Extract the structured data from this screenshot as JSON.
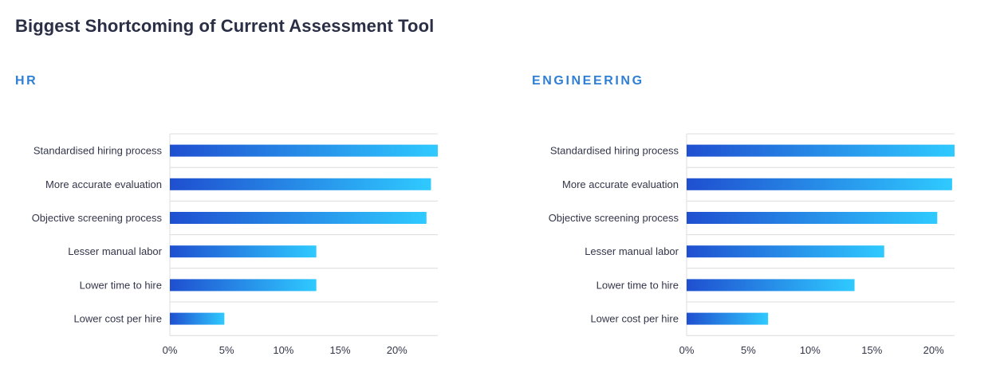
{
  "title": "Biggest Shortcoming of Current Assessment Tool",
  "colors": {
    "bar_start": "#1f4fd0",
    "bar_end": "#2fcaff",
    "heading": "#2f7fd6",
    "title": "#2a2f45",
    "grid": "#dcdcdc"
  },
  "chart_data": [
    {
      "type": "bar",
      "orientation": "horizontal",
      "title": "HR",
      "categories": [
        "Standardised hiring process",
        "More accurate evaluation",
        "Objective screening process",
        "Lesser manual labor",
        "Lower time to hire",
        "Lower cost per hire"
      ],
      "values": [
        23.6,
        23.0,
        22.6,
        12.9,
        12.9,
        4.8
      ],
      "ticks": [
        "0%",
        "5%",
        "10%",
        "15%",
        "20%"
      ],
      "tick_values": [
        0,
        5,
        10,
        15,
        20
      ],
      "xlim": [
        0,
        23.6
      ],
      "grid": true
    },
    {
      "type": "bar",
      "orientation": "horizontal",
      "title": "ENGINEERING",
      "categories": [
        "Standardised hiring process",
        "More accurate evaluation",
        "Objective screening process",
        "Lesser manual labor",
        "Lower time to hire",
        "Lower cost per hire"
      ],
      "values": [
        21.7,
        21.5,
        20.3,
        16.0,
        13.6,
        6.6
      ],
      "ticks": [
        "0%",
        "5%",
        "10%",
        "15%",
        "20%"
      ],
      "tick_values": [
        0,
        5,
        10,
        15,
        20
      ],
      "xlim": [
        0,
        21.7
      ],
      "grid": true
    }
  ]
}
